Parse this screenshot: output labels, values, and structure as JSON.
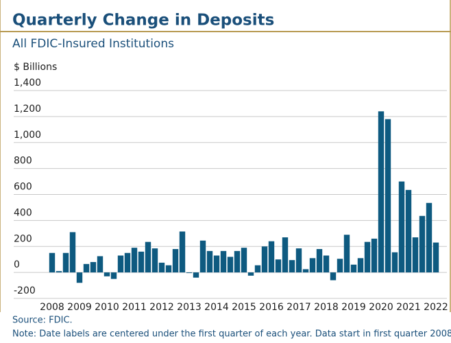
{
  "chart_data": {
    "type": "bar",
    "title": "Quarterly Change in Deposits",
    "subtitle": "All FDIC-Insured Institutions",
    "y_label": "$ Billions",
    "source": "Source: FDIC.",
    "note": "Note: Date labels are centered under the first quarter of each year. Data start in first quarter 2008.",
    "color": "#0e5a80",
    "grid": true,
    "ylim": [
      -200,
      1400
    ],
    "yticks": [
      -200,
      0,
      200,
      400,
      600,
      800,
      {
        "value": 1000,
        "label": "1,000"
      },
      {
        "value": 1200,
        "label": "1,200"
      },
      {
        "value": 1400,
        "label": "1,400"
      }
    ],
    "categories": [
      "2008",
      null,
      null,
      null,
      "2009",
      null,
      null,
      null,
      "2010",
      null,
      null,
      null,
      "2011",
      null,
      null,
      null,
      "2012",
      null,
      null,
      null,
      "2013",
      null,
      null,
      null,
      "2014",
      null,
      null,
      null,
      "2015",
      null,
      null,
      null,
      "2016",
      null,
      null,
      null,
      "2017",
      null,
      null,
      null,
      "2018",
      null,
      null,
      null,
      "2019",
      null,
      null,
      null,
      "2020",
      null,
      null,
      null,
      "2021",
      null,
      null,
      null,
      "2022"
    ],
    "values": [
      150,
      10,
      150,
      310,
      -80,
      65,
      80,
      125,
      -30,
      -50,
      130,
      150,
      190,
      160,
      235,
      185,
      75,
      55,
      180,
      315,
      -5,
      -40,
      245,
      165,
      130,
      165,
      120,
      165,
      190,
      -25,
      55,
      200,
      240,
      100,
      270,
      95,
      185,
      25,
      110,
      180,
      130,
      -60,
      105,
      290,
      60,
      110,
      235,
      260,
      1240,
      1180,
      155,
      700,
      635,
      270,
      435,
      535,
      230
    ]
  }
}
